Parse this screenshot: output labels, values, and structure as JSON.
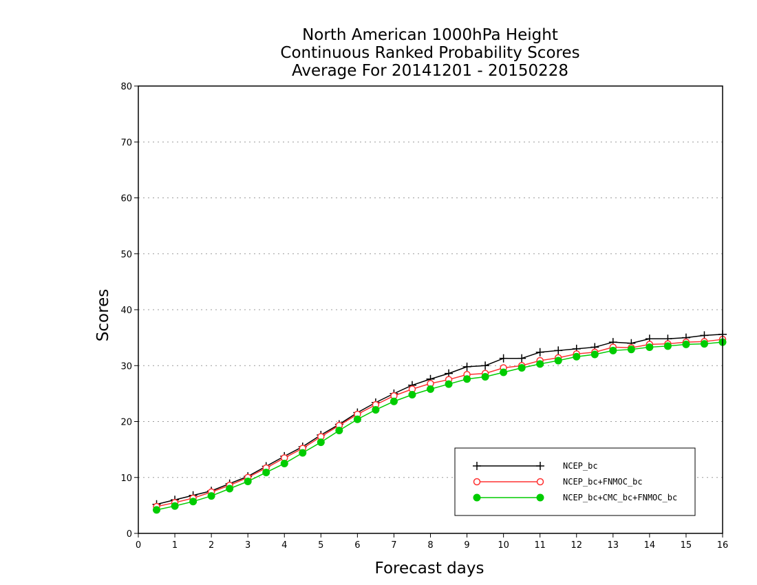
{
  "chart_data": {
    "type": "line",
    "title": [
      "North American 1000hPa Height",
      "Continuous Ranked Probability Scores",
      "Average For 20141201 - 20150228"
    ],
    "xlabel": "Forecast days",
    "ylabel": "Scores",
    "xlim": [
      0,
      16
    ],
    "ylim": [
      0,
      80
    ],
    "xticks": [
      0,
      1,
      2,
      3,
      4,
      5,
      6,
      7,
      8,
      9,
      10,
      11,
      12,
      13,
      14,
      15,
      16
    ],
    "yticks": [
      0,
      10,
      20,
      30,
      40,
      50,
      60,
      70,
      80
    ],
    "grid": "horizontal-dotted",
    "legend_position": "bottom-right",
    "x": [
      0.5,
      1.0,
      1.5,
      2.0,
      2.5,
      3.0,
      3.5,
      4.0,
      4.5,
      5.0,
      5.5,
      6.0,
      6.5,
      7.0,
      7.5,
      8.0,
      8.5,
      9.0,
      9.5,
      10.0,
      10.5,
      11.0,
      11.5,
      12.0,
      12.5,
      13.0,
      13.5,
      14.0,
      14.5,
      15.0,
      15.5,
      16.0
    ],
    "series": [
      {
        "name": "NCEP_bc",
        "color": "#000000",
        "marker": "plus",
        "values": [
          5.2,
          6.0,
          6.8,
          7.6,
          8.9,
          10.2,
          12.0,
          13.8,
          15.5,
          17.6,
          19.5,
          21.6,
          23.4,
          25.0,
          26.5,
          27.6,
          28.6,
          29.8,
          30.0,
          31.3,
          31.3,
          32.4,
          32.7,
          33.0,
          33.3,
          34.2,
          34.0,
          34.8,
          34.8,
          35.0,
          35.4,
          35.6
        ]
      },
      {
        "name": "NCEP_bc+FNMOC_bc",
        "color": "#ff3030",
        "marker": "open-circle",
        "values": [
          4.8,
          5.5,
          6.3,
          7.4,
          8.6,
          10.0,
          11.7,
          13.5,
          15.2,
          17.3,
          19.3,
          21.3,
          23.0,
          24.6,
          25.8,
          26.8,
          27.5,
          28.4,
          28.6,
          29.6,
          30.0,
          30.9,
          31.4,
          32.1,
          32.4,
          33.3,
          33.2,
          33.8,
          33.9,
          34.2,
          34.3,
          34.7
        ]
      },
      {
        "name": "NCEP_bc+CMC_bc+FNMOC_bc",
        "color": "#00cc00",
        "marker": "filled-circle",
        "values": [
          4.2,
          4.9,
          5.7,
          6.7,
          8.0,
          9.3,
          10.9,
          12.5,
          14.4,
          16.3,
          18.4,
          20.4,
          22.1,
          23.6,
          24.8,
          25.8,
          26.7,
          27.6,
          28.0,
          28.8,
          29.6,
          30.3,
          30.9,
          31.6,
          32.0,
          32.7,
          32.9,
          33.3,
          33.5,
          33.8,
          33.9,
          34.2
        ]
      }
    ]
  }
}
